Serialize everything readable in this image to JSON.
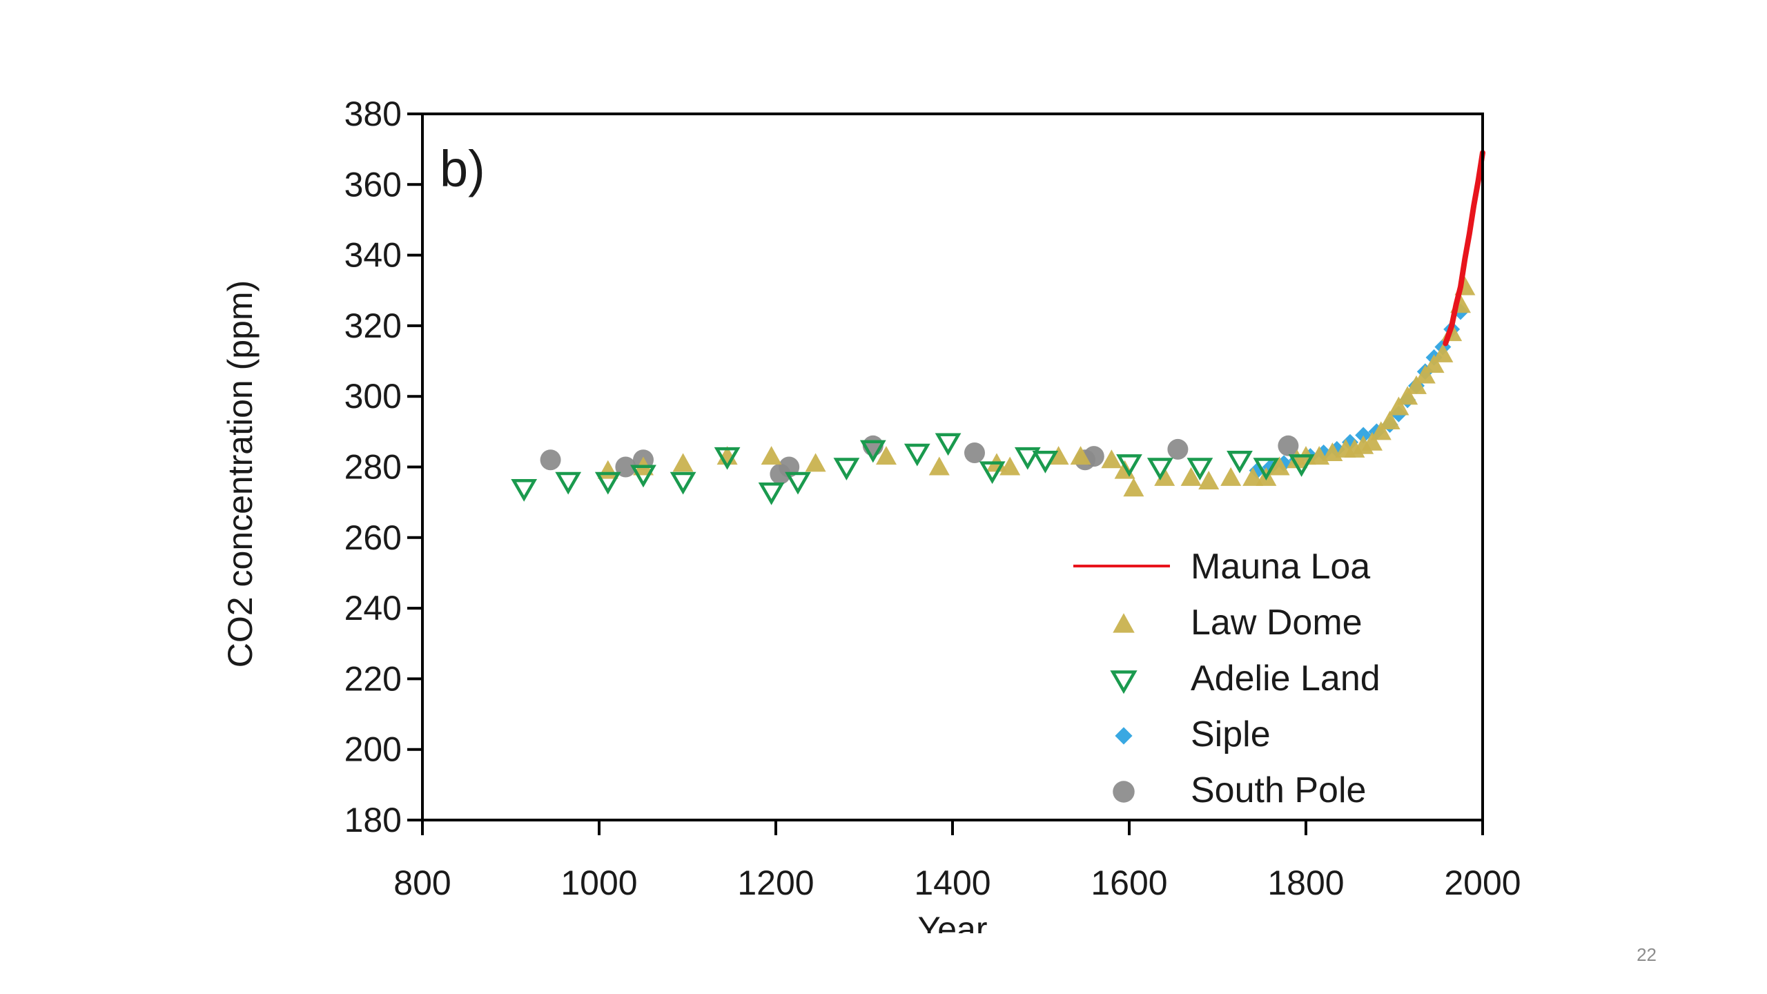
{
  "slide": {
    "number": "22"
  },
  "chart_data": {
    "type": "scatter",
    "panel_label": "b)",
    "xlabel": "Year",
    "ylabel": "CO2 concentration (ppm)",
    "xlim": [
      800,
      2000
    ],
    "ylim": [
      180,
      380
    ],
    "x_ticks": [
      "800",
      "1000",
      "1200",
      "1400",
      "1600",
      "1800",
      "2000"
    ],
    "y_ticks": [
      "180",
      "200",
      "220",
      "240",
      "260",
      "280",
      "300",
      "320",
      "340",
      "360",
      "380"
    ],
    "legend_position": "bottom-right",
    "colors": {
      "mauna_loa": "#e8141c",
      "law_dome": "#c9b24f",
      "adelie_land": "#1a9a4e",
      "siple": "#2ea3e0",
      "south_pole": "#8a8a8a",
      "axis": "#000000"
    },
    "series": [
      {
        "name": "Mauna Loa",
        "kind": "line",
        "x": [
          1958,
          1965,
          1970,
          1975,
          1980,
          1985,
          1990,
          1995,
          2000
        ],
        "y": [
          315,
          320,
          326,
          331,
          339,
          346,
          354,
          361,
          369
        ]
      },
      {
        "name": "Law Dome",
        "kind": "triangle-up",
        "x": [
          1010,
          1050,
          1095,
          1145,
          1195,
          1245,
          1325,
          1385,
          1450,
          1465,
          1520,
          1545,
          1580,
          1595,
          1605,
          1640,
          1670,
          1690,
          1715,
          1740,
          1755,
          1770,
          1790,
          1800,
          1815,
          1830,
          1845,
          1855,
          1865,
          1875,
          1885,
          1895,
          1905,
          1915,
          1925,
          1935,
          1945,
          1955,
          1965,
          1975,
          1980
        ],
        "y": [
          279,
          280,
          281,
          283,
          283,
          281,
          283,
          280,
          281,
          280,
          283,
          283,
          282,
          279,
          274,
          277,
          277,
          276,
          277,
          277,
          277,
          280,
          282,
          283,
          283,
          284,
          285,
          285,
          286,
          287,
          290,
          293,
          297,
          300,
          303,
          306,
          309,
          312,
          318,
          326,
          331
        ]
      },
      {
        "name": "Adelie Land",
        "kind": "triangle-down",
        "x": [
          915,
          965,
          1010,
          1050,
          1095,
          1145,
          1195,
          1225,
          1280,
          1310,
          1360,
          1395,
          1445,
          1485,
          1505,
          1600,
          1635,
          1680,
          1725,
          1755,
          1795
        ],
        "y": [
          274,
          276,
          276,
          278,
          276,
          283,
          273,
          276,
          280,
          285,
          284,
          287,
          279,
          283,
          282,
          281,
          280,
          280,
          282,
          280,
          281
        ]
      },
      {
        "name": "Siple",
        "kind": "diamond",
        "x": [
          1745,
          1760,
          1775,
          1790,
          1805,
          1820,
          1835,
          1850,
          1865,
          1880,
          1895,
          1905,
          1915,
          1925,
          1935,
          1945,
          1955,
          1965,
          1975
        ],
        "y": [
          279,
          280,
          281,
          282,
          283,
          284,
          285,
          287,
          289,
          290,
          292,
          295,
          299,
          303,
          307,
          311,
          314,
          319,
          324
        ]
      },
      {
        "name": "South Pole",
        "kind": "circle",
        "x": [
          945,
          1030,
          1050,
          1205,
          1215,
          1310,
          1425,
          1550,
          1560,
          1655,
          1780
        ],
        "y": [
          282,
          280,
          282,
          278,
          280,
          286,
          284,
          282,
          283,
          285,
          286
        ]
      }
    ]
  }
}
